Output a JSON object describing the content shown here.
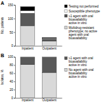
{
  "chart_data": [
    {
      "type": "bar",
      "title": "A",
      "y_label": "No. patients",
      "stacked": true,
      "legend": "right",
      "categories": [
        "Inpatient",
        "Outpatient"
      ],
      "series": [
        {
          "name": "Multidrug-resistant phenotype; no active agent with oral bioavailability",
          "color": "#d9d9d9",
          "values": [
            74,
            17
          ]
        },
        {
          "name": "≥1 agent with oral bioavailability active in vitro",
          "color": "#595959",
          "values": [
            45,
            8
          ]
        },
        {
          "name": "Susceptible phenotype",
          "color": "#ffffff",
          "values": [
            10,
            3
          ]
        },
        {
          "name": "Testing not performed",
          "color": "#000000",
          "values": [
            14,
            2
          ]
        }
      ],
      "ylim": [
        0,
        150
      ],
      "yticks": [
        0,
        50,
        100,
        150
      ]
    },
    {
      "type": "bar",
      "title": "B",
      "y_label": "Isolates, %",
      "stacked": true,
      "legend": "right",
      "categories": [
        "Inpatient",
        "Outpatient"
      ],
      "series": [
        {
          "name": "No agent with oral bioavailability active in vitro",
          "color": "#d9d9d9",
          "values": [
            81,
            62
          ]
        },
        {
          "name": "≥1 agent with oral bioavailability active in vitro",
          "color": "#595959",
          "values": [
            19,
            38
          ]
        }
      ],
      "ylim": [
        0,
        100
      ],
      "yticks": [
        0,
        20,
        40,
        60,
        80,
        100
      ]
    }
  ]
}
